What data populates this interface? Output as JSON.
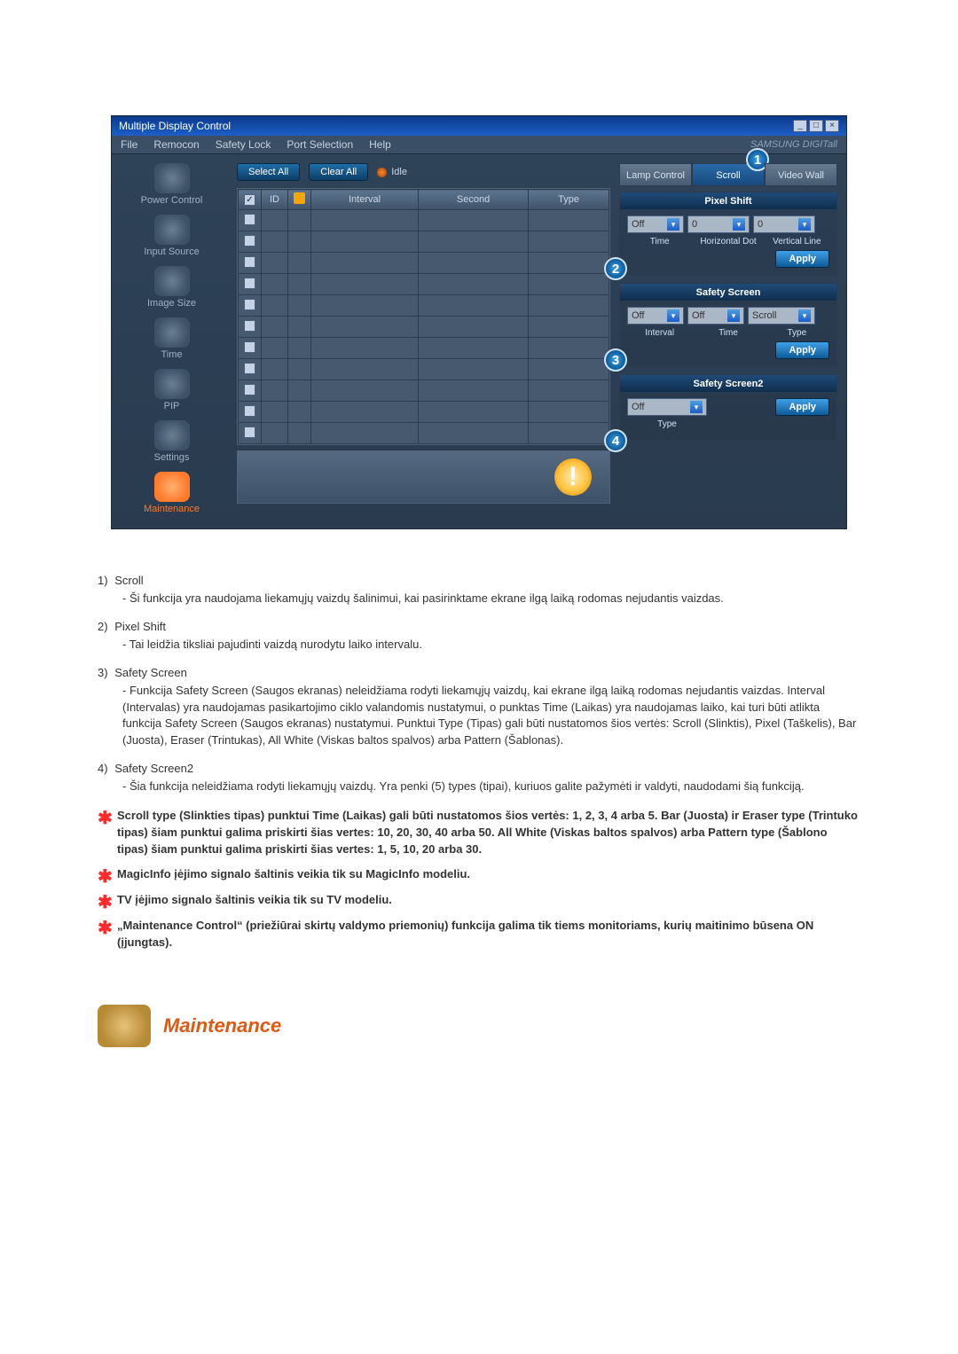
{
  "window": {
    "title": "Multiple Display Control",
    "menus": [
      "File",
      "Remocon",
      "Safety Lock",
      "Port Selection",
      "Help"
    ],
    "brand": "SAMSUNG DIGITall"
  },
  "sidebar": [
    {
      "label": "Power Control"
    },
    {
      "label": "Input Source"
    },
    {
      "label": "Image Size"
    },
    {
      "label": "Time"
    },
    {
      "label": "PIP"
    },
    {
      "label": "Settings"
    },
    {
      "label": "Maintenance",
      "active": true
    }
  ],
  "toolbar": {
    "select_all": "Select All",
    "clear_all": "Clear All",
    "idle": "Idle"
  },
  "grid": {
    "headers": [
      "",
      "ID",
      "",
      "Interval",
      "Second",
      "Type"
    ],
    "rows": 11
  },
  "tabs": [
    {
      "label": "Lamp Control"
    },
    {
      "label": "Scroll",
      "active": true,
      "callout": "1"
    },
    {
      "label": "Video Wall"
    }
  ],
  "pixel_shift": {
    "title": "Pixel Shift",
    "fields": {
      "time": {
        "label": "Time",
        "value": "Off"
      },
      "hdot": {
        "label": "Horizontal Dot",
        "value": "0"
      },
      "vline": {
        "label": "Vertical Line",
        "value": "0"
      }
    },
    "apply": "Apply",
    "callout": "2"
  },
  "safety_screen": {
    "title": "Safety Screen",
    "fields": {
      "interval": {
        "label": "Interval",
        "value": "Off"
      },
      "time": {
        "label": "Time",
        "value": "Off"
      },
      "type": {
        "label": "Type",
        "value": "Scroll"
      }
    },
    "apply": "Apply",
    "callout": "3"
  },
  "safety_screen2": {
    "title": "Safety Screen2",
    "fields": {
      "type": {
        "label": "Type",
        "value": "Off"
      }
    },
    "apply": "Apply",
    "callout": "4"
  },
  "doc_items": [
    {
      "num": "1)",
      "title": "Scroll",
      "desc": "- Ši funkcija yra naudojama liekamųjų vaizdų šalinimui, kai pasirinktame ekrane ilgą laiką rodomas nejudantis vaizdas."
    },
    {
      "num": "2)",
      "title": "Pixel Shift",
      "desc": "- Tai leidžia tiksliai pajudinti vaizdą nurodytu laiko intervalu."
    },
    {
      "num": "3)",
      "title": "Safety Screen",
      "desc": "- Funkcija Safety Screen (Saugos ekranas) neleidžiama rodyti liekamųjų vaizdų, kai ekrane ilgą laiką rodomas nejudantis vaizdas.  Interval (Intervalas) yra naudojamas pasikartojimo ciklo valandomis nustatymui, o punktas Time (Laikas) yra naudojamas laiko, kai turi būti atlikta funkcija Safety Screen (Saugos ekranas) nustatymui. Punktui Type (Tipas) gali būti nustatomos šios vertės: Scroll (Slinktis), Pixel (Taškelis), Bar (Juosta), Eraser (Trintukas), All White (Viskas baltos spalvos) arba Pattern (Šablonas)."
    },
    {
      "num": "4)",
      "title": "Safety Screen2",
      "desc": "- Šia funkcija neleidžiama rodyti liekamųjų vaizdų. Yra penki (5) types (tipai), kuriuos galite pažymėti ir valdyti, naudodami šią funkciją."
    }
  ],
  "star_notes": [
    "Scroll type (Slinkties tipas) punktui Time (Laikas) gali būti nustatomos šios vertės: 1, 2, 3, 4 arba 5. Bar (Juosta) ir Eraser type (Trintuko tipas) šiam punktui galima priskirti šias vertes: 10, 20, 30, 40 arba 50. All White (Viskas baltos spalvos) arba Pattern type (Šablono tipas) šiam punktui galima priskirti šias vertes: 1, 5, 10, 20 arba 30.",
    "MagicInfo įėjimo signalo šaltinis veikia tik su MagicInfo modeliu.",
    "TV įėjimo signalo šaltinis veikia tik su TV modeliu.",
    "„Maintenance Control“ (priežiūrai skirtų valdymo priemonių) funkcija galima tik tiems monitoriams, kurių maitinimo būsena ON (įjungtas)."
  ],
  "section_heading": "Maintenance"
}
